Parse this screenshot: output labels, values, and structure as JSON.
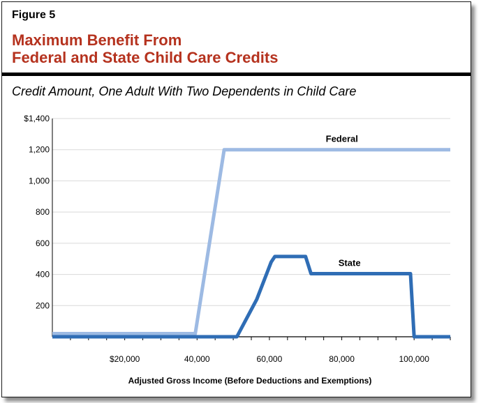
{
  "figure": {
    "label": "Figure 5",
    "title_line1": "Maximum Benefit From",
    "title_line2": "Federal and State Child Care Credits",
    "subtitle": "Credit Amount, One Adult With Two Dependents in Child Care"
  },
  "chart_data": {
    "type": "line",
    "title": "Maximum Benefit From Federal and State Child Care Credits",
    "subtitle": "Credit Amount, One Adult With Two Dependents in Child Care",
    "xlabel": "Adjusted Gross Income (Before Deductions and Exemptions)",
    "ylabel": "",
    "xlim": [
      0,
      110000
    ],
    "ylim": [
      0,
      1400
    ],
    "x_ticks": [
      20000,
      40000,
      60000,
      80000,
      100000
    ],
    "x_tick_labels": [
      "$20,000",
      "40,000",
      "60,000",
      "80,000",
      "100,000"
    ],
    "y_ticks": [
      200,
      400,
      600,
      800,
      1000,
      1200,
      1400
    ],
    "y_tick_labels": [
      "200",
      "400",
      "600",
      "800",
      "1,000",
      "1,200",
      "$1,400"
    ],
    "grid": true,
    "series": [
      {
        "name": "Federal",
        "color": "#9dbae3",
        "points": [
          [
            0,
            20
          ],
          [
            39500,
            20
          ],
          [
            47500,
            1200
          ],
          [
            110000,
            1200
          ]
        ]
      },
      {
        "name": "State",
        "color": "#2f6db5",
        "points": [
          [
            0,
            0
          ],
          [
            51000,
            0
          ],
          [
            56500,
            240
          ],
          [
            60500,
            480
          ],
          [
            61500,
            515
          ],
          [
            70000,
            515
          ],
          [
            71500,
            405
          ],
          [
            99000,
            405
          ],
          [
            100000,
            0
          ],
          [
            110000,
            0
          ]
        ]
      }
    ],
    "annotations": [
      {
        "text": "Federal",
        "series": 0,
        "x": 75000,
        "y": 1200
      },
      {
        "text": "State",
        "series": 1,
        "x": 78500,
        "y": 405
      }
    ]
  }
}
